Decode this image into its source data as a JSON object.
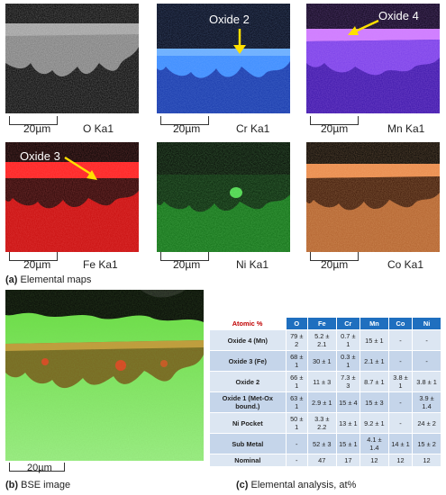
{
  "maps": [
    {
      "element": "O Ka1",
      "scale": "20µm",
      "callout": ""
    },
    {
      "element": "Cr Ka1",
      "scale": "20µm",
      "callout": "Oxide 2"
    },
    {
      "element": "Mn Ka1",
      "scale": "20µm",
      "callout": "Oxide 4"
    },
    {
      "element": "Fe Ka1",
      "scale": "20µm",
      "callout": "Oxide 3"
    },
    {
      "element": "Ni Ka1",
      "scale": "20µm",
      "callout": ""
    },
    {
      "element": "Co Ka1",
      "scale": "20µm",
      "callout": ""
    }
  ],
  "captions": {
    "a_tag": "(a)",
    "a_text": " Elemental maps",
    "b_tag": "(b)",
    "b_text": " BSE image",
    "c_tag": "(c)",
    "c_text": " Elemental analysis, at%"
  },
  "bse": {
    "scale": "20µm"
  },
  "table": {
    "corner": "Atomic %",
    "headers": [
      "O",
      "Fe",
      "Cr",
      "Mn",
      "Co",
      "Ni"
    ],
    "rows": [
      {
        "label": "Oxide 4 (Mn)",
        "cells": [
          "79 ± 2",
          "5.2 ± 2.1",
          "0.7 ± 1",
          "15 ± 1",
          "-",
          "-"
        ]
      },
      {
        "label": "Oxide 3 (Fe)",
        "cells": [
          "68 ± 1",
          "30 ± 1",
          "0.3 ± 1",
          "2.1 ± 1",
          "-",
          "-"
        ]
      },
      {
        "label": "Oxide 2",
        "cells": [
          "66 ± 1",
          "11 ± 3",
          "7.3 ± 3",
          "8.7 ± 1",
          "3.8 ± 1",
          "3.8 ± 1"
        ]
      },
      {
        "label": "Oxide 1 (Met-Ox bound.)",
        "cells": [
          "63 ± 1",
          "2.9 ± 1",
          "15 ± 4",
          "15 ± 3",
          "-",
          "3.9 ± 1.4"
        ]
      },
      {
        "label": "Ni Pocket",
        "cells": [
          "50 ± 1",
          "3.3 ± 2.2",
          "13 ± 1",
          "9.2 ± 1",
          "-",
          "24 ± 2"
        ]
      },
      {
        "label": "Sub Metal",
        "cells": [
          "-",
          "52 ± 3",
          "15 ± 1",
          "4.1 ± 1.4",
          "14 ± 1",
          "15 ± 2"
        ]
      },
      {
        "label": "Nominal",
        "cells": [
          "-",
          "47",
          "17",
          "12",
          "12",
          "12"
        ]
      }
    ]
  }
}
